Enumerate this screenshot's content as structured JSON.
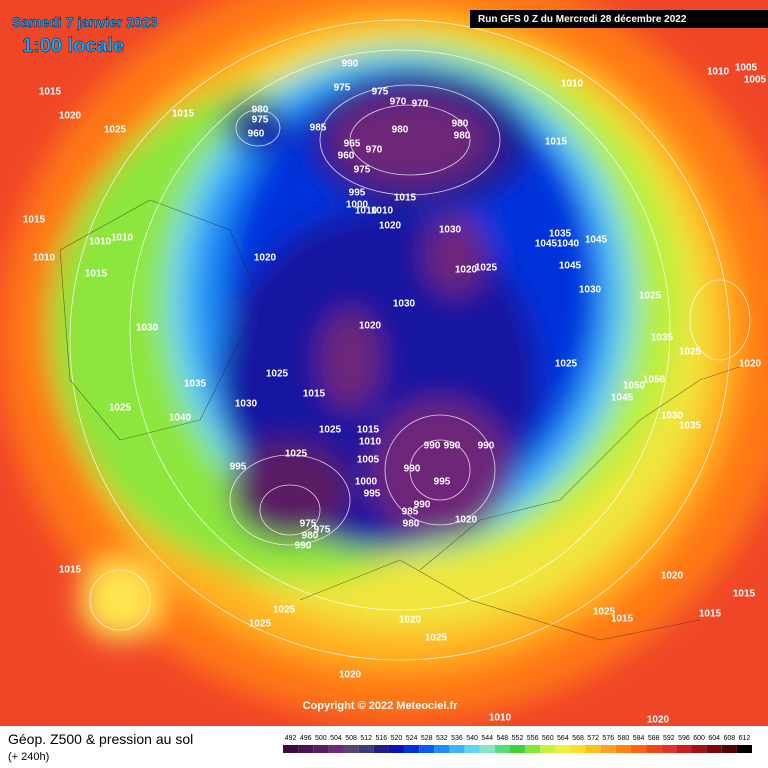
{
  "header": {
    "date": "Samedi 7 janvier 2023",
    "time": "1:00 locale",
    "run": "Run GFS 0 Z du Mercredi 28 décembre 2022"
  },
  "copyright": "Copyright © 2022 Meteociel.fr",
  "footer": {
    "title": "Géop. Z500 & pression au sol",
    "lead": "(+ 240h)"
  },
  "legend": {
    "labels": [
      492,
      496,
      500,
      504,
      508,
      512,
      516,
      520,
      524,
      528,
      532,
      536,
      540,
      544,
      548,
      552,
      556,
      560,
      564,
      568,
      572,
      576,
      580,
      584,
      588,
      592,
      596,
      600,
      604,
      608,
      612
    ],
    "colors": [
      "#3c0a3c",
      "#4b1150",
      "#5a1a64",
      "#6e2878",
      "#55466e",
      "#3c3c78",
      "#1e1e8c",
      "#0a14b4",
      "#0032dc",
      "#0a5af0",
      "#1e8cf5",
      "#3cb4f5",
      "#64d2f0",
      "#82e6c8",
      "#5adc78",
      "#3cd23c",
      "#82e63c",
      "#c8f03c",
      "#f0f03c",
      "#ffdc28",
      "#ffbe1e",
      "#ffa01e",
      "#ff8214",
      "#ff6414",
      "#f04614",
      "#e63228",
      "#c81e1e",
      "#a01414",
      "#780a0a",
      "#500505",
      "#000000"
    ]
  },
  "isobar_labels": [
    "990",
    "975",
    "975",
    "970",
    "970",
    "980",
    "980",
    "1010",
    "1010",
    "1005",
    "1005",
    "1015",
    "1020",
    "1025",
    "1015",
    "980",
    "975",
    "960",
    "985",
    "980",
    "965",
    "960",
    "970",
    "975",
    "1015",
    "995",
    "1000",
    "1010",
    "1010",
    "1015",
    "1020",
    "1030",
    "1035",
    "1045",
    "1040",
    "1045",
    "1015",
    "1010",
    "1010",
    "1010",
    "1015",
    "1020",
    "1020",
    "1025",
    "1045",
    "1030",
    "1025",
    "1030",
    "1035",
    "1030",
    "1020",
    "1025",
    "1020",
    "1025",
    "1035",
    "1025",
    "1050",
    "1050",
    "1045",
    "1015",
    "1030",
    "1025",
    "1040",
    "1025",
    "1015",
    "1010",
    "990",
    "990",
    "990",
    "1030",
    "1035",
    "1025",
    "1005",
    "995",
    "990",
    "1000",
    "995",
    "995",
    "990",
    "985",
    "980",
    "975",
    "975",
    "980",
    "990",
    "1015",
    "1020",
    "1020",
    "1025",
    "1025",
    "1025",
    "1015",
    "1015",
    "1015",
    "1020",
    "1025",
    "1020",
    "1010",
    "1020"
  ]
}
